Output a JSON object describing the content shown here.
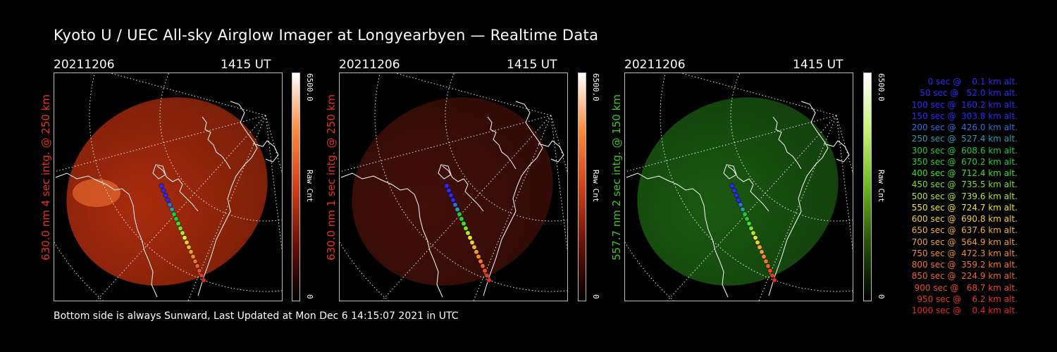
{
  "title": "Kyoto U / UEC All-sky Airglow Imager at Longyearbyen — Realtime Data",
  "panels": [
    {
      "date": "20211206",
      "time": "1415 UT",
      "label": "630.0 nm 4 sec intg. @ 250 km",
      "label_color": "#e8331a",
      "colorbar_max": "6500.0",
      "colorbar_unit": "Raw Cnt",
      "colorbar_min": "0",
      "glow_color": "#c8330f",
      "glow_opacity": 0.85,
      "cbar_colors": [
        "#ffffff",
        "#ff8a3d",
        "#d2401a",
        "#6a1208",
        "#000000"
      ]
    },
    {
      "date": "20211206",
      "time": "1415 UT",
      "label": "630.0 nm 1 sec intg. @ 250 km",
      "label_color": "#e8331a",
      "colorbar_max": "6500.0",
      "colorbar_unit": "Raw Cnt",
      "colorbar_min": "0",
      "glow_color": "#5a140b",
      "glow_opacity": 0.75,
      "cbar_colors": [
        "#ffffff",
        "#ff8a3d",
        "#d2401a",
        "#6a1208",
        "#000000"
      ]
    },
    {
      "date": "20211206",
      "time": "1415 UT",
      "label": "557.7 nm 2 sec intg. @ 150 km",
      "label_color": "#43c322",
      "colorbar_max": "6500.0",
      "colorbar_unit": "Raw Cnt",
      "colorbar_min": "0",
      "glow_color": "#1f6a14",
      "glow_opacity": 0.85,
      "cbar_colors": [
        "#ffffff",
        "#c8f07a",
        "#6cb61e",
        "#254d0a",
        "#000000"
      ]
    }
  ],
  "footer": "Bottom side is always Sunward, Last Updated at Mon Dec  6 14:15:07 2021 in UTC",
  "legend": [
    {
      "text": "   0 sec @    0.1 km alt.",
      "color": "#2a2aff"
    },
    {
      "text": "  50 sec @   52.0 km alt.",
      "color": "#2a2aff"
    },
    {
      "text": " 100 sec @  160.2 km alt.",
      "color": "#2a2aff"
    },
    {
      "text": " 150 sec @  303.8 km alt.",
      "color": "#2a2aff"
    },
    {
      "text": " 200 sec @  426.0 km alt.",
      "color": "#2f6fe0"
    },
    {
      "text": " 250 sec @  527.4 km alt.",
      "color": "#2e9bb0"
    },
    {
      "text": " 300 sec @  608.6 km alt.",
      "color": "#22c840"
    },
    {
      "text": " 350 sec @  670.2 km alt.",
      "color": "#22d22a"
    },
    {
      "text": " 400 sec @  712.4 km alt.",
      "color": "#3fe02a"
    },
    {
      "text": " 450 sec @  735.5 km alt.",
      "color": "#7ae02a"
    },
    {
      "text": " 500 sec @  739.6 km alt.",
      "color": "#b4e62a"
    },
    {
      "text": " 550 sec @  724.7 km alt.",
      "color": "#e8e82a"
    },
    {
      "text": " 600 sec @  690.8 km alt.",
      "color": "#f2d22a"
    },
    {
      "text": " 650 sec @  637.6 km alt.",
      "color": "#f0b42a"
    },
    {
      "text": " 700 sec @  564.9 km alt.",
      "color": "#f0a02a"
    },
    {
      "text": " 750 sec @  472.3 km alt.",
      "color": "#f08c2a"
    },
    {
      "text": " 800 sec @  359.2 km alt.",
      "color": "#f0782a"
    },
    {
      "text": " 850 sec @  224.9 km alt.",
      "color": "#ee6428"
    },
    {
      "text": " 900 sec @   68.7 km alt.",
      "color": "#ea4a26"
    },
    {
      "text": " 950 sec @    6.2 km alt.",
      "color": "#e63a24"
    },
    {
      "text": "1000 sec @    0.4 km alt.",
      "color": "#e22a22"
    }
  ]
}
